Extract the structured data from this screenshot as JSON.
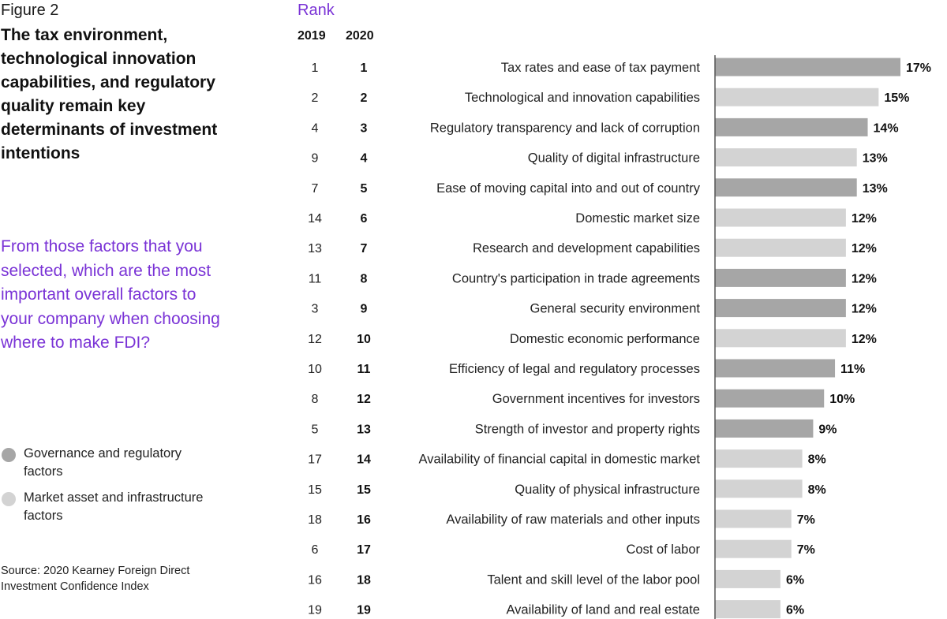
{
  "figure_label": "Figure 2",
  "title": "The tax environment, technological innovation capabilities, and regulatory quality remain key determinants of investment intentions",
  "question": "From those factors that you selected, which are the most important overall factors to your company when choosing where to make FDI?",
  "legend": [
    {
      "label": "Governance and regulatory factors",
      "color": "#a6a6a6"
    },
    {
      "label": "Market asset and infrastructure factors",
      "color": "#d3d3d3"
    }
  ],
  "source": "Source: 2020 Kearney Foreign Direct Investment Confidence Index",
  "rank_header": "Rank",
  "year_headers": [
    "2019",
    "2020"
  ],
  "colors": {
    "governance": "#a6a6a6",
    "market": "#d3d3d3",
    "accent": "#7a33d6",
    "axis": "#555555"
  },
  "chart_data": {
    "type": "bar",
    "orientation": "horizontal",
    "value_unit": "%",
    "xlim": [
      0,
      17
    ],
    "categories": [
      "Tax rates and ease of tax payment",
      "Technological and innovation capabilities",
      "Regulatory transparency and lack of corruption",
      "Quality of digital infrastructure",
      "Ease of moving capital into and out of country",
      "Domestic market size",
      "Research and development capabilities",
      "Country's participation in trade agreements",
      "General security environment",
      "Domestic economic performance",
      "Efficiency of legal and regulatory processes",
      "Government incentives for investors",
      "Strength of investor and property rights",
      "Availability of financial capital in domestic market",
      "Quality of physical infrastructure",
      "Availability of raw materials and other inputs",
      "Cost of labor",
      "Talent and skill level of the labor pool",
      "Availability of land and real estate"
    ],
    "values": [
      17,
      15,
      14,
      13,
      13,
      12,
      12,
      12,
      12,
      12,
      11,
      10,
      9,
      8,
      8,
      7,
      7,
      6,
      6
    ],
    "value_labels": [
      "17%",
      "15%",
      "14%",
      "13%",
      "13%",
      "12%",
      "12%",
      "12%",
      "12%",
      "12%",
      "11%",
      "10%",
      "9%",
      "8%",
      "8%",
      "7%",
      "7%",
      "6%",
      "6%"
    ],
    "rank_2019": [
      "1",
      "2",
      "4",
      "9",
      "7",
      "14",
      "13",
      "11",
      "3",
      "12",
      "10",
      "8",
      "5",
      "17",
      "15",
      "18",
      "6",
      "16",
      "19"
    ],
    "rank_2020": [
      "1",
      "2",
      "3",
      "4",
      "5",
      "6",
      "7",
      "8",
      "9",
      "10",
      "11",
      "12",
      "13",
      "14",
      "15",
      "16",
      "17",
      "18",
      "19"
    ],
    "group": [
      "governance",
      "market",
      "governance",
      "market",
      "governance",
      "market",
      "market",
      "governance",
      "governance",
      "market",
      "governance",
      "governance",
      "governance",
      "market",
      "market",
      "market",
      "market",
      "market",
      "market"
    ]
  }
}
